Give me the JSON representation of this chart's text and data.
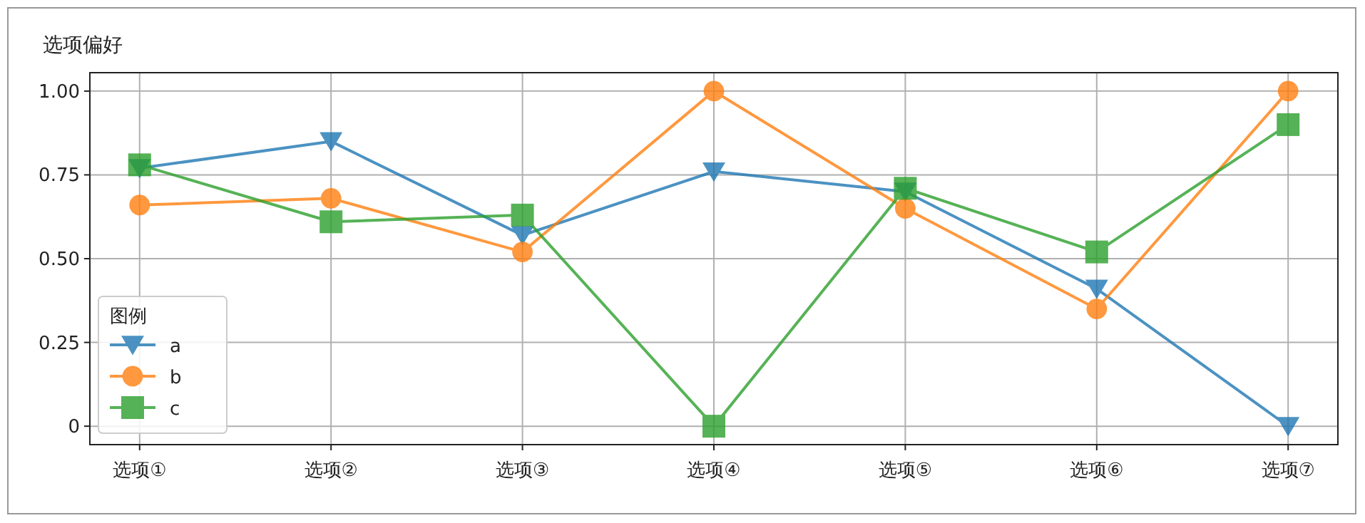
{
  "chart_data": {
    "type": "line",
    "title": "选项偏好",
    "categories": [
      "选项①",
      "选项②",
      "选项③",
      "选项④",
      "选项⑤",
      "选项⑥",
      "选项⑦"
    ],
    "series": [
      {
        "name": "a",
        "color": "#1f77b4",
        "marker": "triangle",
        "values": [
          0.77,
          0.85,
          0.57,
          0.76,
          0.7,
          0.41,
          0
        ]
      },
      {
        "name": "b",
        "color": "#ff7f0e",
        "marker": "circle",
        "values": [
          0.66,
          0.68,
          0.52,
          1.0,
          0.65,
          0.35,
          1.0
        ]
      },
      {
        "name": "c",
        "color": "#2ca02c",
        "marker": "square",
        "values": [
          0.78,
          0.61,
          0.63,
          0,
          0.71,
          0.52,
          0.9
        ]
      }
    ],
    "ylim": [
      -0.055,
      1.055
    ],
    "yticks": [
      {
        "value": 0,
        "label": "0"
      },
      {
        "value": 0.25,
        "label": "0.25"
      },
      {
        "value": 0.5,
        "label": "0.50"
      },
      {
        "value": 0.75,
        "label": "0.75"
      },
      {
        "value": 1,
        "label": "1.00"
      }
    ],
    "grid": true,
    "legend": "bottom left",
    "legend_title": "图例",
    "line_style": "solid"
  }
}
